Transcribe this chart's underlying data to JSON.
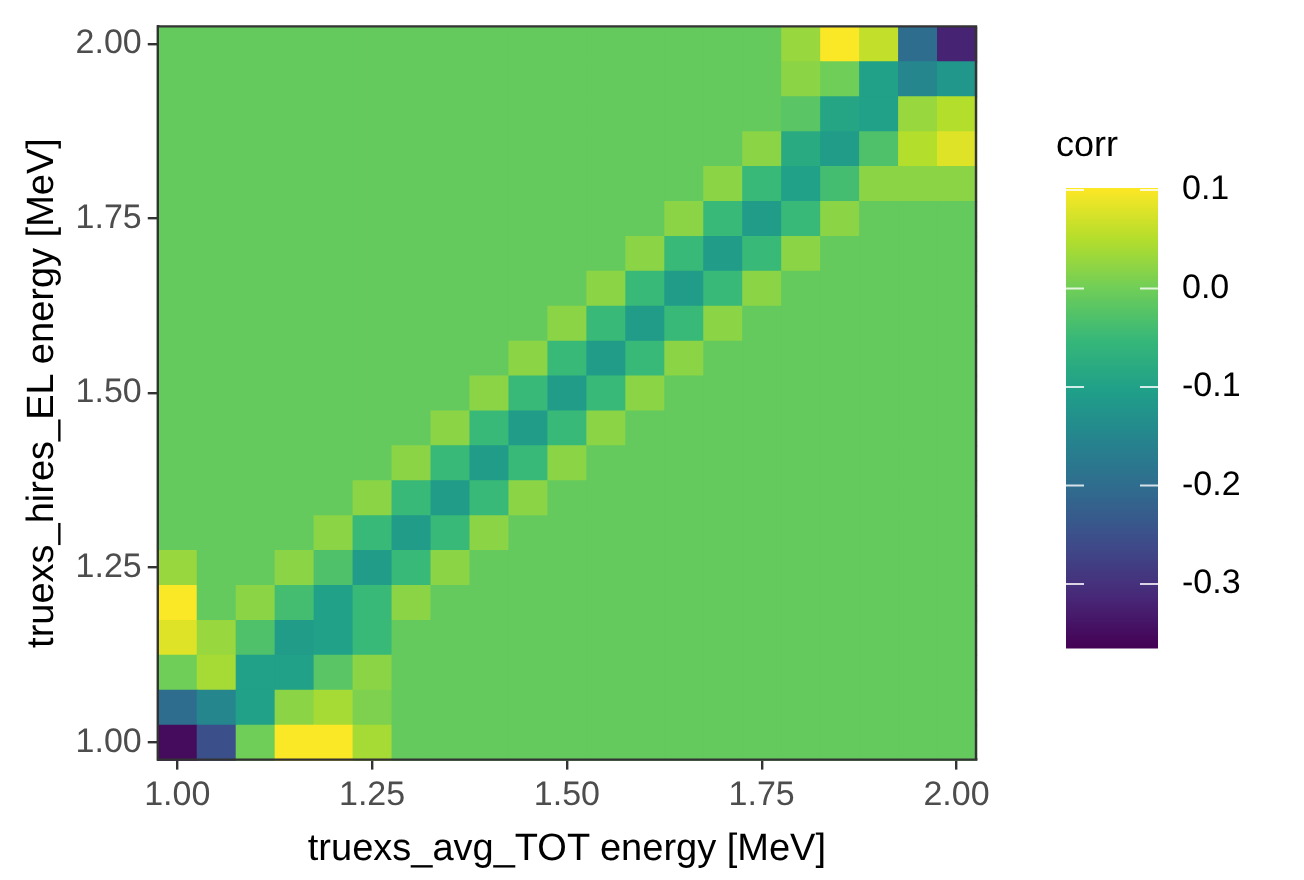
{
  "chart_data": {
    "type": "heatmap",
    "xlabel": "truexs_avg_TOT energy [MeV]",
    "ylabel": "truexs_hires_EL energy [MeV]",
    "clabel": "corr",
    "clim": [
      -0.365,
      0.102
    ],
    "cticks": [
      0.1,
      {
        "value": 0,
        "label": "0.0"
      },
      -0.1,
      -0.2,
      -0.3
    ],
    "categories": [
      "1.00",
      null,
      null,
      null,
      null,
      "1.25",
      null,
      null,
      null,
      null,
      "1.50",
      null,
      null,
      null,
      null,
      "1.75",
      null,
      null,
      null,
      null,
      "2.00"
    ],
    "y_categories": [
      "2.00",
      null,
      null,
      null,
      null,
      "1.75",
      null,
      null,
      null,
      null,
      "1.50",
      null,
      null,
      null,
      null,
      "1.25",
      null,
      null,
      null,
      null,
      "1.00"
    ],
    "cells": [
      [
        -0.01,
        -0.01,
        -0.01,
        -0.01,
        -0.01,
        -0.01,
        -0.01,
        -0.01,
        -0.01,
        -0.01,
        -0.01,
        -0.01,
        -0.01,
        -0.01,
        -0.01,
        -0.01,
        0.03,
        0.1,
        0.06,
        -0.2,
        -0.32
      ],
      [
        -0.01,
        -0.01,
        -0.01,
        -0.01,
        -0.01,
        -0.01,
        -0.01,
        -0.01,
        -0.01,
        -0.01,
        -0.01,
        -0.01,
        -0.01,
        -0.01,
        -0.01,
        -0.01,
        0.02,
        0.0,
        -0.1,
        -0.15,
        -0.12
      ],
      [
        -0.01,
        -0.01,
        -0.01,
        -0.01,
        -0.01,
        -0.01,
        -0.01,
        -0.01,
        -0.01,
        -0.01,
        -0.01,
        -0.01,
        -0.01,
        -0.01,
        -0.01,
        -0.01,
        -0.02,
        -0.09,
        -0.1,
        0.03,
        0.05
      ],
      [
        -0.01,
        -0.01,
        -0.01,
        -0.01,
        -0.01,
        -0.01,
        -0.01,
        -0.01,
        -0.01,
        -0.01,
        -0.01,
        -0.01,
        -0.01,
        -0.01,
        -0.01,
        0.02,
        -0.08,
        -0.11,
        -0.03,
        0.05,
        0.08
      ],
      [
        -0.01,
        -0.01,
        -0.01,
        -0.01,
        -0.01,
        -0.01,
        -0.01,
        -0.01,
        -0.01,
        -0.01,
        -0.01,
        -0.01,
        -0.01,
        -0.01,
        0.02,
        -0.05,
        -0.1,
        -0.04,
        0.02,
        0.02,
        0.02
      ],
      [
        -0.01,
        -0.01,
        -0.01,
        -0.01,
        -0.01,
        -0.01,
        -0.01,
        -0.01,
        -0.01,
        -0.01,
        -0.01,
        -0.01,
        -0.01,
        0.02,
        -0.05,
        -0.11,
        -0.05,
        0.02,
        -0.01,
        -0.01,
        -0.01
      ],
      [
        -0.01,
        -0.01,
        -0.01,
        -0.01,
        -0.01,
        -0.01,
        -0.01,
        -0.01,
        -0.01,
        -0.01,
        -0.01,
        -0.01,
        0.02,
        -0.05,
        -0.11,
        -0.05,
        0.02,
        -0.01,
        -0.01,
        -0.01,
        -0.01
      ],
      [
        -0.01,
        -0.01,
        -0.01,
        -0.01,
        -0.01,
        -0.01,
        -0.01,
        -0.01,
        -0.01,
        -0.01,
        -0.01,
        0.02,
        -0.05,
        -0.11,
        -0.05,
        0.02,
        -0.01,
        -0.01,
        -0.01,
        -0.01,
        -0.01
      ],
      [
        -0.01,
        -0.01,
        -0.01,
        -0.01,
        -0.01,
        -0.01,
        -0.01,
        -0.01,
        -0.01,
        -0.01,
        0.02,
        -0.05,
        -0.11,
        -0.05,
        0.02,
        -0.01,
        -0.01,
        -0.01,
        -0.01,
        -0.01,
        -0.01
      ],
      [
        -0.01,
        -0.01,
        -0.01,
        -0.01,
        -0.01,
        -0.01,
        -0.01,
        -0.01,
        -0.01,
        0.02,
        -0.05,
        -0.11,
        -0.05,
        0.02,
        -0.01,
        -0.01,
        -0.01,
        -0.01,
        -0.01,
        -0.01,
        -0.01
      ],
      [
        -0.01,
        -0.01,
        -0.01,
        -0.01,
        -0.01,
        -0.01,
        -0.01,
        -0.01,
        0.02,
        -0.05,
        -0.11,
        -0.05,
        0.02,
        -0.01,
        -0.01,
        -0.01,
        -0.01,
        -0.01,
        -0.01,
        -0.01,
        -0.01
      ],
      [
        -0.01,
        -0.01,
        -0.01,
        -0.01,
        -0.01,
        -0.01,
        -0.01,
        0.02,
        -0.05,
        -0.11,
        -0.05,
        0.02,
        -0.01,
        -0.01,
        -0.01,
        -0.01,
        -0.01,
        -0.01,
        -0.01,
        -0.01,
        -0.01
      ],
      [
        -0.01,
        -0.01,
        -0.01,
        -0.01,
        -0.01,
        -0.01,
        0.02,
        -0.05,
        -0.11,
        -0.05,
        0.02,
        -0.01,
        -0.01,
        -0.01,
        -0.01,
        -0.01,
        -0.01,
        -0.01,
        -0.01,
        -0.01,
        -0.01
      ],
      [
        -0.01,
        -0.01,
        -0.01,
        -0.01,
        -0.01,
        0.02,
        -0.05,
        -0.11,
        -0.05,
        0.02,
        -0.01,
        -0.01,
        -0.01,
        -0.01,
        -0.01,
        -0.01,
        -0.01,
        -0.01,
        -0.01,
        -0.01,
        -0.01
      ],
      [
        -0.01,
        -0.01,
        -0.01,
        -0.01,
        0.02,
        -0.05,
        -0.11,
        -0.05,
        0.02,
        -0.01,
        -0.01,
        -0.01,
        -0.01,
        -0.01,
        -0.01,
        -0.01,
        -0.01,
        -0.01,
        -0.01,
        -0.01,
        -0.01
      ],
      [
        0.03,
        -0.01,
        -0.01,
        0.02,
        -0.03,
        -0.11,
        -0.05,
        0.02,
        -0.01,
        -0.01,
        -0.01,
        -0.01,
        -0.01,
        -0.01,
        -0.01,
        -0.01,
        -0.01,
        -0.01,
        -0.01,
        -0.01,
        -0.01
      ],
      [
        0.1,
        -0.01,
        0.02,
        -0.04,
        -0.1,
        -0.05,
        0.02,
        -0.01,
        -0.01,
        -0.01,
        -0.01,
        -0.01,
        -0.01,
        -0.01,
        -0.01,
        -0.01,
        -0.01,
        -0.01,
        -0.01,
        -0.01,
        -0.01
      ],
      [
        0.08,
        0.03,
        -0.03,
        -0.11,
        -0.1,
        -0.05,
        -0.01,
        -0.01,
        -0.01,
        -0.01,
        -0.01,
        -0.01,
        -0.01,
        -0.01,
        -0.01,
        -0.01,
        -0.01,
        -0.01,
        -0.01,
        -0.01,
        -0.01
      ],
      [
        0.0,
        0.04,
        -0.1,
        -0.1,
        -0.02,
        0.02,
        -0.01,
        -0.01,
        -0.01,
        -0.01,
        -0.01,
        -0.01,
        -0.01,
        -0.01,
        -0.01,
        -0.01,
        -0.01,
        -0.01,
        -0.01,
        -0.01,
        -0.01
      ],
      [
        -0.2,
        -0.15,
        -0.1,
        0.02,
        0.04,
        0.01,
        -0.01,
        -0.01,
        -0.01,
        -0.01,
        -0.01,
        -0.01,
        -0.01,
        -0.01,
        -0.01,
        -0.01,
        -0.01,
        -0.01,
        -0.01,
        -0.01,
        -0.01
      ],
      [
        -0.35,
        -0.25,
        0.0,
        0.1,
        0.1,
        0.04,
        -0.01,
        -0.01,
        -0.01,
        -0.01,
        -0.01,
        -0.01,
        -0.01,
        -0.01,
        -0.01,
        -0.01,
        -0.01,
        -0.01,
        -0.01,
        -0.01,
        -0.01
      ]
    ]
  }
}
